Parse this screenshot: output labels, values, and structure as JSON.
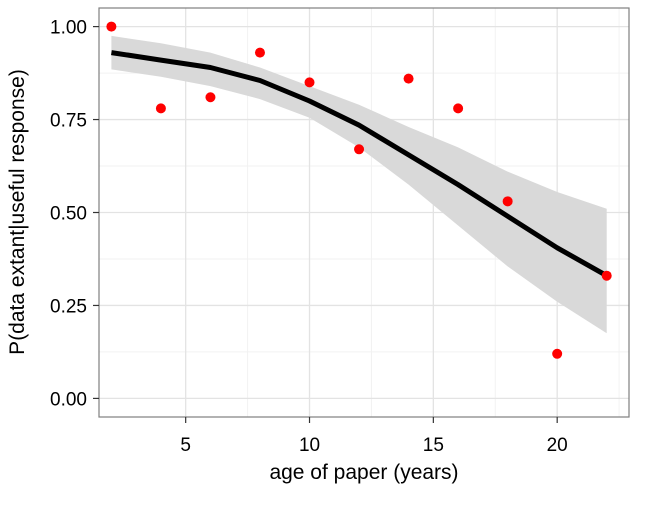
{
  "chart_data": {
    "type": "scatter",
    "xlabel": "age of paper (years)",
    "ylabel": "P(data extant|useful response)",
    "xlim": [
      1.5,
      22.9
    ],
    "ylim": [
      -0.05,
      1.05
    ],
    "x_ticks": [
      5,
      10,
      15,
      20
    ],
    "x_tick_labels": [
      "5",
      "10",
      "15",
      "20"
    ],
    "y_ticks": [
      0,
      0.25,
      0.5,
      0.75,
      1.0
    ],
    "y_tick_labels": [
      "0.00",
      "0.25",
      "0.50",
      "0.75",
      "1.00"
    ],
    "grid": true,
    "legend": "none",
    "series": [
      {
        "type": "scatter",
        "color": "#ff0000",
        "points": [
          {
            "x": 2,
            "y": 1.0
          },
          {
            "x": 4,
            "y": 0.78
          },
          {
            "x": 6,
            "y": 0.81
          },
          {
            "x": 8,
            "y": 0.93
          },
          {
            "x": 10,
            "y": 0.85
          },
          {
            "x": 12,
            "y": 0.67
          },
          {
            "x": 14,
            "y": 0.86
          },
          {
            "x": 16,
            "y": 0.78
          },
          {
            "x": 18,
            "y": 0.53
          },
          {
            "x": 20,
            "y": 0.12
          },
          {
            "x": 22,
            "y": 0.33
          }
        ]
      },
      {
        "type": "line",
        "color": "#000000",
        "points": [
          {
            "x": 2,
            "y": 0.93
          },
          {
            "x": 4,
            "y": 0.91
          },
          {
            "x": 6,
            "y": 0.89
          },
          {
            "x": 8,
            "y": 0.855
          },
          {
            "x": 10,
            "y": 0.8
          },
          {
            "x": 12,
            "y": 0.735
          },
          {
            "x": 14,
            "y": 0.655
          },
          {
            "x": 16,
            "y": 0.575
          },
          {
            "x": 18,
            "y": 0.49
          },
          {
            "x": 20,
            "y": 0.405
          },
          {
            "x": 22,
            "y": 0.33
          }
        ]
      },
      {
        "type": "area",
        "color": "#d9d9d9",
        "upper": [
          {
            "x": 2,
            "y": 0.975
          },
          {
            "x": 4,
            "y": 0.955
          },
          {
            "x": 6,
            "y": 0.93
          },
          {
            "x": 8,
            "y": 0.89
          },
          {
            "x": 10,
            "y": 0.84
          },
          {
            "x": 12,
            "y": 0.79
          },
          {
            "x": 14,
            "y": 0.73
          },
          {
            "x": 16,
            "y": 0.675
          },
          {
            "x": 18,
            "y": 0.61
          },
          {
            "x": 20,
            "y": 0.555
          },
          {
            "x": 22,
            "y": 0.51
          }
        ],
        "lower": [
          {
            "x": 2,
            "y": 0.885
          },
          {
            "x": 4,
            "y": 0.865
          },
          {
            "x": 6,
            "y": 0.84
          },
          {
            "x": 8,
            "y": 0.805
          },
          {
            "x": 10,
            "y": 0.755
          },
          {
            "x": 12,
            "y": 0.675
          },
          {
            "x": 14,
            "y": 0.575
          },
          {
            "x": 16,
            "y": 0.465
          },
          {
            "x": 18,
            "y": 0.355
          },
          {
            "x": 20,
            "y": 0.26
          },
          {
            "x": 22,
            "y": 0.175
          }
        ]
      }
    ]
  }
}
